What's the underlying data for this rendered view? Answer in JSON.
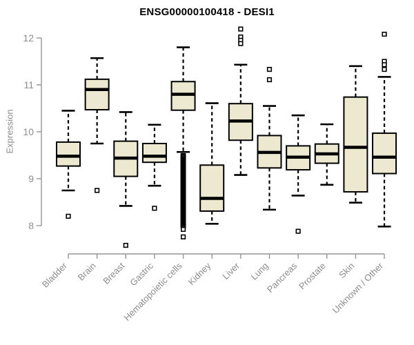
{
  "page": {
    "background": "#ffffff"
  },
  "chart_data": {
    "type": "boxplot",
    "title": "ENSG00000100418 - DESI1",
    "ylabel": "Expression",
    "xlabel": "",
    "ylim": [
      7.5,
      12.35
    ],
    "yticks": [
      8,
      9,
      10,
      11,
      12
    ],
    "grid": false,
    "legend": "none",
    "colors": {
      "box_fill": "#ede9d0",
      "box_stroke": "#000000",
      "median": "#000000",
      "whisker": "#000000",
      "outlier_stroke": "#000000",
      "axis_line": "#949494",
      "tick_text": "#8c8c8c",
      "title_text": "#000000",
      "background": "#ffffff"
    },
    "categories": [
      "Bladder",
      "Brain",
      "Breast",
      "Gastric",
      "Hematopoietic cells",
      "Kidney",
      "Liver",
      "Lung",
      "Pancreas",
      "Prostate",
      "Skin",
      "Unknown / Other"
    ],
    "boxes": [
      {
        "category": "Bladder",
        "whisker_low": 8.75,
        "q1": 9.27,
        "median": 9.48,
        "q3": 9.78,
        "whisker_high": 10.45,
        "outliers": [
          8.2
        ]
      },
      {
        "category": "Brain",
        "whisker_low": 9.75,
        "q1": 10.47,
        "median": 10.9,
        "q3": 11.12,
        "whisker_high": 11.57,
        "outliers": [
          8.75
        ]
      },
      {
        "category": "Breast",
        "whisker_low": 8.42,
        "q1": 9.05,
        "median": 9.44,
        "q3": 9.8,
        "whisker_high": 10.42,
        "outliers": [
          7.58
        ]
      },
      {
        "category": "Gastric",
        "whisker_low": 8.85,
        "q1": 9.35,
        "median": 9.48,
        "q3": 9.75,
        "whisker_high": 10.15,
        "outliers": [
          8.37
        ]
      },
      {
        "category": "Hematopoietic cells",
        "whisker_low": 9.57,
        "q1": 10.46,
        "median": 10.8,
        "q3": 11.07,
        "whisker_high": 11.8,
        "outliers": [
          7.92,
          7.76
        ],
        "outlier_column": {
          "from": 7.99,
          "to": 9.49
        }
      },
      {
        "category": "Kidney",
        "whisker_low": 8.04,
        "q1": 8.31,
        "median": 8.58,
        "q3": 9.29,
        "whisker_high": 10.61,
        "outliers": []
      },
      {
        "category": "Liver",
        "whisker_low": 9.08,
        "q1": 9.82,
        "median": 10.23,
        "q3": 10.6,
        "whisker_high": 11.43,
        "outliers": [
          12.19,
          12.02,
          11.95,
          11.88
        ]
      },
      {
        "category": "Lung",
        "whisker_low": 8.34,
        "q1": 9.23,
        "median": 9.56,
        "q3": 9.92,
        "whisker_high": 10.55,
        "outliers": [
          11.33,
          11.11
        ]
      },
      {
        "category": "Pancreas",
        "whisker_low": 8.64,
        "q1": 9.19,
        "median": 9.46,
        "q3": 9.7,
        "whisker_high": 10.35,
        "outliers": [
          7.88
        ]
      },
      {
        "category": "Prostate",
        "whisker_low": 8.87,
        "q1": 9.33,
        "median": 9.53,
        "q3": 9.74,
        "whisker_high": 10.16,
        "outliers": []
      },
      {
        "category": "Skin",
        "whisker_low": 8.49,
        "q1": 8.72,
        "median": 9.67,
        "q3": 10.74,
        "whisker_high": 11.4,
        "outliers": []
      },
      {
        "category": "Unknown / Other",
        "whisker_low": 7.98,
        "q1": 9.11,
        "median": 9.46,
        "q3": 9.97,
        "whisker_high": 11.17,
        "outliers": [
          12.08,
          11.5,
          11.43,
          11.33
        ]
      }
    ]
  }
}
